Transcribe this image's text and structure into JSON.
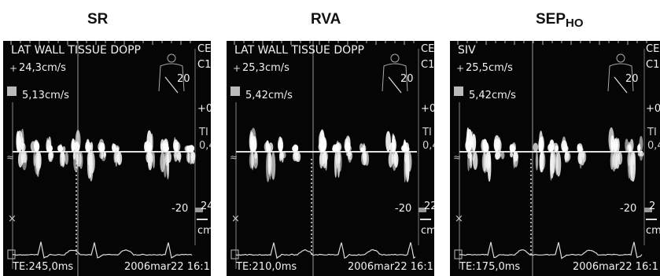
{
  "panels": [
    {
      "title": "SR",
      "title_sub": "",
      "header": "LAT WALL  TISSUE DOPP",
      "velocity_1": "24,3cm/s",
      "velocity_2": "5,13cm/s",
      "edge_top": "CE",
      "edge_2": "C1",
      "number_20": "20",
      "plus_zero": "+0",
      "edge_ti": "TI",
      "edge_04": "0,4",
      "minus_20": "-20",
      "edge_bottom_num": "24",
      "edge_cm": "cm",
      "te": "TE:245,0ms",
      "date": "2006mar22 16:1"
    },
    {
      "title": "RVA",
      "title_sub": "",
      "header": "LAT WALL  TISSUE DOPP",
      "velocity_1": "25,3cm/s",
      "velocity_2": "5,42cm/s",
      "edge_top": "CE",
      "edge_2": "C1",
      "number_20": "20",
      "plus_zero": "+0",
      "edge_ti": "TI",
      "edge_04": "0,4",
      "minus_20": "-20",
      "edge_bottom_num": "22",
      "edge_cm": "cm",
      "te": "TE:210,0ms",
      "date": "2006mar22 16:1"
    },
    {
      "title": "SEP",
      "title_sub": "HO",
      "header": "SIV",
      "velocity_1": "25,5cm/s",
      "velocity_2": "5,42cm/s",
      "edge_top": "CE",
      "edge_2": "C1",
      "number_20": "20",
      "plus_zero": "+0",
      "edge_ti": "TI",
      "edge_04": "0,4",
      "minus_20": "-20",
      "edge_bottom_num": "2",
      "edge_cm": "cm",
      "te": "TE:175,0ms",
      "date": "2006mar22 16:1"
    }
  ]
}
